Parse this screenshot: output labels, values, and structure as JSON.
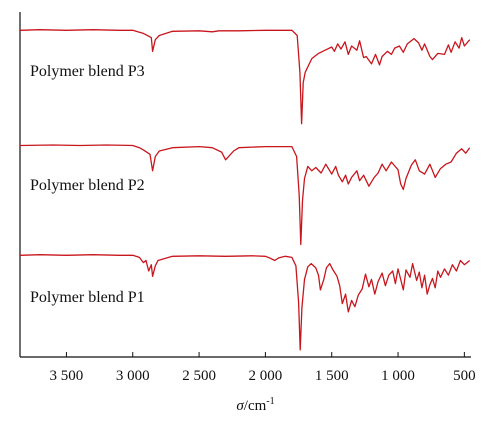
{
  "chart_data": {
    "type": "line",
    "title": "",
    "xlabel": "σ/cm-1",
    "xlabel_parts": {
      "symbol": "σ",
      "unit": "/cm",
      "exp": "-1"
    },
    "ylabel": "",
    "x_reversed": true,
    "xlim": [
      3850,
      450
    ],
    "xticks": [
      3500,
      3000,
      2500,
      2000,
      1500,
      1000,
      500
    ],
    "xtick_labels": [
      "3 500",
      "3 000",
      "2 500",
      "2 000",
      "1 500",
      "1 000",
      "500"
    ],
    "grid": false,
    "legend": "none",
    "line_color": "#c8161d",
    "series": [
      {
        "name": "Polymer blend P3",
        "baseline": 0.95,
        "points": [
          [
            3850,
            0.95
          ],
          [
            3700,
            0.955
          ],
          [
            3500,
            0.95
          ],
          [
            3300,
            0.955
          ],
          [
            3100,
            0.95
          ],
          [
            3000,
            0.95
          ],
          [
            2950,
            0.93
          ],
          [
            2920,
            0.92
          ],
          [
            2860,
            0.88
          ],
          [
            2850,
            0.75
          ],
          [
            2830,
            0.86
          ],
          [
            2800,
            0.9
          ],
          [
            2700,
            0.94
          ],
          [
            2500,
            0.945
          ],
          [
            2400,
            0.935
          ],
          [
            2350,
            0.945
          ],
          [
            2200,
            0.945
          ],
          [
            2000,
            0.95
          ],
          [
            1800,
            0.95
          ],
          [
            1760,
            0.9
          ],
          [
            1740,
            0.55
          ],
          [
            1727,
            0.06
          ],
          [
            1715,
            0.45
          ],
          [
            1700,
            0.55
          ],
          [
            1650,
            0.68
          ],
          [
            1600,
            0.73
          ],
          [
            1550,
            0.76
          ],
          [
            1500,
            0.79
          ],
          [
            1480,
            0.75
          ],
          [
            1455,
            0.82
          ],
          [
            1430,
            0.77
          ],
          [
            1400,
            0.84
          ],
          [
            1375,
            0.72
          ],
          [
            1350,
            0.8
          ],
          [
            1310,
            0.76
          ],
          [
            1290,
            0.85
          ],
          [
            1260,
            0.69
          ],
          [
            1240,
            0.7
          ],
          [
            1200,
            0.63
          ],
          [
            1170,
            0.72
          ],
          [
            1140,
            0.62
          ],
          [
            1120,
            0.7
          ],
          [
            1080,
            0.75
          ],
          [
            1050,
            0.72
          ],
          [
            1025,
            0.78
          ],
          [
            990,
            0.8
          ],
          [
            960,
            0.74
          ],
          [
            930,
            0.82
          ],
          [
            880,
            0.87
          ],
          [
            845,
            0.83
          ],
          [
            820,
            0.76
          ],
          [
            800,
            0.82
          ],
          [
            760,
            0.7
          ],
          [
            740,
            0.67
          ],
          [
            700,
            0.73
          ],
          [
            650,
            0.72
          ],
          [
            620,
            0.81
          ],
          [
            600,
            0.74
          ],
          [
            570,
            0.84
          ],
          [
            540,
            0.78
          ],
          [
            520,
            0.88
          ],
          [
            500,
            0.8
          ],
          [
            460,
            0.86
          ]
        ]
      },
      {
        "name": "Polymer blend P2",
        "baseline": 0.95,
        "points": [
          [
            3850,
            0.95
          ],
          [
            3600,
            0.955
          ],
          [
            3400,
            0.95
          ],
          [
            3200,
            0.955
          ],
          [
            3000,
            0.95
          ],
          [
            2950,
            0.93
          ],
          [
            2920,
            0.91
          ],
          [
            2870,
            0.87
          ],
          [
            2850,
            0.72
          ],
          [
            2830,
            0.85
          ],
          [
            2800,
            0.9
          ],
          [
            2700,
            0.93
          ],
          [
            2500,
            0.94
          ],
          [
            2400,
            0.93
          ],
          [
            2330,
            0.89
          ],
          [
            2300,
            0.82
          ],
          [
            2270,
            0.86
          ],
          [
            2240,
            0.9
          ],
          [
            2200,
            0.93
          ],
          [
            2000,
            0.94
          ],
          [
            1800,
            0.94
          ],
          [
            1765,
            0.85
          ],
          [
            1745,
            0.5
          ],
          [
            1733,
            0.05
          ],
          [
            1720,
            0.45
          ],
          [
            1705,
            0.65
          ],
          [
            1680,
            0.76
          ],
          [
            1650,
            0.72
          ],
          [
            1620,
            0.75
          ],
          [
            1580,
            0.7
          ],
          [
            1545,
            0.78
          ],
          [
            1520,
            0.73
          ],
          [
            1500,
            0.69
          ],
          [
            1470,
            0.76
          ],
          [
            1450,
            0.68
          ],
          [
            1420,
            0.62
          ],
          [
            1395,
            0.68
          ],
          [
            1375,
            0.6
          ],
          [
            1350,
            0.66
          ],
          [
            1310,
            0.72
          ],
          [
            1290,
            0.63
          ],
          [
            1260,
            0.68
          ],
          [
            1220,
            0.58
          ],
          [
            1180,
            0.66
          ],
          [
            1150,
            0.7
          ],
          [
            1120,
            0.78
          ],
          [
            1090,
            0.72
          ],
          [
            1050,
            0.8
          ],
          [
            1000,
            0.73
          ],
          [
            980,
            0.6
          ],
          [
            960,
            0.55
          ],
          [
            940,
            0.65
          ],
          [
            900,
            0.77
          ],
          [
            870,
            0.82
          ],
          [
            840,
            0.72
          ],
          [
            800,
            0.69
          ],
          [
            760,
            0.78
          ],
          [
            720,
            0.66
          ],
          [
            680,
            0.74
          ],
          [
            640,
            0.78
          ],
          [
            600,
            0.8
          ],
          [
            560,
            0.88
          ],
          [
            520,
            0.92
          ],
          [
            490,
            0.88
          ],
          [
            460,
            0.93
          ]
        ]
      },
      {
        "name": "Polymer blend P1",
        "baseline": 0.95,
        "points": [
          [
            3850,
            0.95
          ],
          [
            3700,
            0.955
          ],
          [
            3500,
            0.95
          ],
          [
            3300,
            0.955
          ],
          [
            3100,
            0.95
          ],
          [
            3000,
            0.95
          ],
          [
            2950,
            0.93
          ],
          [
            2920,
            0.88
          ],
          [
            2900,
            0.9
          ],
          [
            2880,
            0.8
          ],
          [
            2860,
            0.86
          ],
          [
            2850,
            0.75
          ],
          [
            2830,
            0.85
          ],
          [
            2810,
            0.9
          ],
          [
            2700,
            0.94
          ],
          [
            2500,
            0.945
          ],
          [
            2300,
            0.94
          ],
          [
            2100,
            0.945
          ],
          [
            2000,
            0.94
          ],
          [
            1960,
            0.92
          ],
          [
            1930,
            0.9
          ],
          [
            1900,
            0.925
          ],
          [
            1850,
            0.94
          ],
          [
            1800,
            0.93
          ],
          [
            1770,
            0.85
          ],
          [
            1750,
            0.5
          ],
          [
            1738,
            0.05
          ],
          [
            1725,
            0.45
          ],
          [
            1705,
            0.72
          ],
          [
            1680,
            0.84
          ],
          [
            1655,
            0.87
          ],
          [
            1620,
            0.83
          ],
          [
            1600,
            0.76
          ],
          [
            1585,
            0.62
          ],
          [
            1560,
            0.72
          ],
          [
            1540,
            0.83
          ],
          [
            1515,
            0.87
          ],
          [
            1490,
            0.81
          ],
          [
            1460,
            0.75
          ],
          [
            1440,
            0.66
          ],
          [
            1420,
            0.49
          ],
          [
            1395,
            0.58
          ],
          [
            1375,
            0.41
          ],
          [
            1350,
            0.52
          ],
          [
            1325,
            0.46
          ],
          [
            1300,
            0.57
          ],
          [
            1270,
            0.63
          ],
          [
            1245,
            0.77
          ],
          [
            1220,
            0.65
          ],
          [
            1200,
            0.72
          ],
          [
            1175,
            0.58
          ],
          [
            1150,
            0.7
          ],
          [
            1120,
            0.78
          ],
          [
            1095,
            0.66
          ],
          [
            1070,
            0.76
          ],
          [
            1040,
            0.8
          ],
          [
            1020,
            0.68
          ],
          [
            1000,
            0.82
          ],
          [
            980,
            0.72
          ],
          [
            960,
            0.62
          ],
          [
            940,
            0.81
          ],
          [
            910,
            0.74
          ],
          [
            890,
            0.87
          ],
          [
            860,
            0.71
          ],
          [
            840,
            0.79
          ],
          [
            820,
            0.64
          ],
          [
            800,
            0.76
          ],
          [
            780,
            0.58
          ],
          [
            760,
            0.67
          ],
          [
            740,
            0.73
          ],
          [
            720,
            0.64
          ],
          [
            700,
            0.8
          ],
          [
            680,
            0.74
          ],
          [
            650,
            0.82
          ],
          [
            620,
            0.76
          ],
          [
            590,
            0.86
          ],
          [
            560,
            0.8
          ],
          [
            530,
            0.9
          ],
          [
            500,
            0.86
          ],
          [
            460,
            0.9
          ]
        ]
      }
    ]
  }
}
